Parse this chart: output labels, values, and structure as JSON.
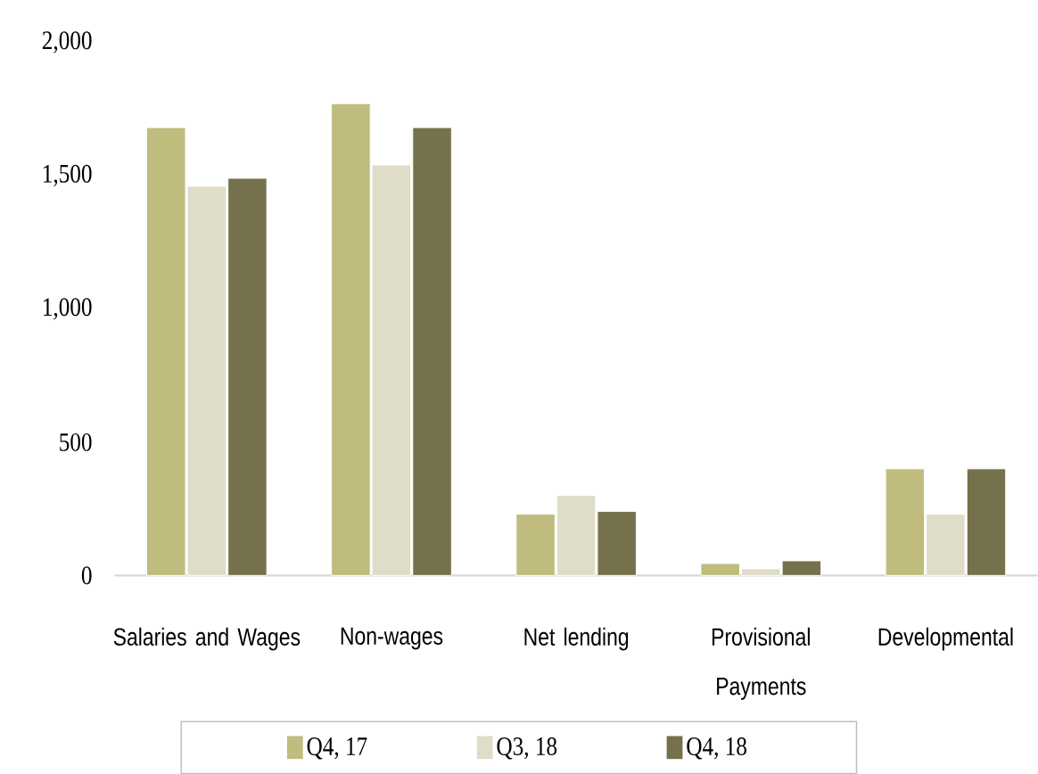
{
  "chart_data": {
    "type": "bar",
    "categories": [
      "Salaries and Wages",
      "Non-wages",
      "Net lending",
      "Provisional Payments",
      "Developmental"
    ],
    "series": [
      {
        "name": "Q4, 17",
        "color": "#bfbc7e",
        "values": [
          1680,
          1770,
          230,
          45,
          400
        ]
      },
      {
        "name": "Q3, 18",
        "color": "#dfddc8",
        "values": [
          1460,
          1540,
          300,
          25,
          230
        ]
      },
      {
        "name": "Q4, 18",
        "color": "#74714c",
        "values": [
          1490,
          1680,
          240,
          55,
          400
        ]
      }
    ],
    "ylim": [
      0,
      2000
    ],
    "yticks": [
      0,
      500,
      {
        "value": 1000,
        "label": "1,000"
      },
      {
        "value": 1500,
        "label": "1,500"
      },
      {
        "value": 2000,
        "label": "2,000"
      }
    ],
    "legend": "bottom"
  }
}
